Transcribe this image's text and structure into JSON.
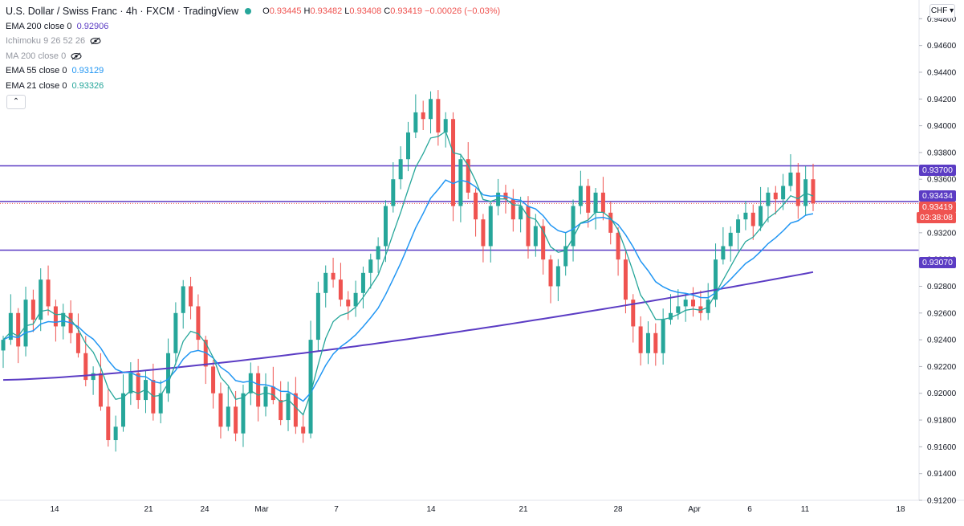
{
  "header": {
    "title": "U.S. Dollar / Swiss Franc · 4h · FXCM · TradingView",
    "ohlc": {
      "o_label": "O",
      "o": "0.93445",
      "h_label": "H",
      "h": "0.93482",
      "l_label": "L",
      "l": "0.93408",
      "c_label": "C",
      "c": "0.93419",
      "change": "−0.00026 (−0.03%)"
    },
    "currency": "CHF"
  },
  "indicators": [
    {
      "label": "EMA 200 close 0",
      "value": "0.92906",
      "color": "#5b3cc4",
      "hidden": false
    },
    {
      "label": "Ichimoku 9 26 52 26",
      "value": "",
      "color": "#9598a1",
      "hidden": true
    },
    {
      "label": "MA 200 close 0",
      "value": "",
      "color": "#9598a1",
      "hidden": true
    },
    {
      "label": "EMA 55 close 0",
      "value": "0.93129",
      "color": "#2196f3",
      "hidden": false
    },
    {
      "label": "EMA 21 close 0",
      "value": "0.93326",
      "color": "#26a69a",
      "hidden": false
    }
  ],
  "price_tags": {
    "level_high": "0.93700",
    "level_mid": "0.93434",
    "last": "0.93419",
    "countdown": "03:38:08",
    "level_low": "0.93070"
  },
  "colors": {
    "up": "#26a69a",
    "down": "#ef5350",
    "level": "#5b3cc4",
    "ema200": "#5b3cc4",
    "ema55": "#2196f3",
    "ema21": "#26a69a"
  },
  "chart_data": {
    "type": "candlestick",
    "y_ticks": [
      "0.94800",
      "0.94600",
      "0.94400",
      "0.94200",
      "0.94000",
      "0.93800",
      "0.93600",
      "0.93400",
      "0.93200",
      "0.93000",
      "0.92800",
      "0.92600",
      "0.92400",
      "0.92200",
      "0.92000",
      "0.91800",
      "0.91600",
      "0.91400",
      "0.91200"
    ],
    "ylim": [
      0.912,
      0.9485
    ],
    "x_ticks": [
      "14",
      "21",
      "24",
      "Mar",
      "7",
      "14",
      "21",
      "28",
      "Apr",
      "6",
      "11",
      "18"
    ],
    "horizontal_levels": [
      0.937,
      0.93434,
      0.9307
    ],
    "close_path": [
      0.924,
      0.926,
      0.9235,
      0.927,
      0.9255,
      0.9285,
      0.9265,
      0.925,
      0.926,
      0.9245,
      0.923,
      0.921,
      0.9215,
      0.919,
      0.9165,
      0.9175,
      0.92,
      0.9215,
      0.9195,
      0.921,
      0.9185,
      0.92,
      0.923,
      0.926,
      0.928,
      0.9265,
      0.924,
      0.922,
      0.92,
      0.9175,
      0.919,
      0.917,
      0.92,
      0.9215,
      0.919,
      0.9205,
      0.9195,
      0.918,
      0.92,
      0.9175,
      0.917,
      0.924,
      0.9275,
      0.929,
      0.9285,
      0.927,
      0.9265,
      0.9275,
      0.929,
      0.93,
      0.931,
      0.934,
      0.936,
      0.9375,
      0.9395,
      0.941,
      0.9405,
      0.942,
      0.9395,
      0.9405,
      0.934,
      0.9375,
      0.935,
      0.933,
      0.931,
      0.934,
      0.935,
      0.9345,
      0.933,
      0.934,
      0.931,
      0.9325,
      0.93,
      0.928,
      0.9295,
      0.931,
      0.934,
      0.9355,
      0.9335,
      0.935,
      0.9335,
      0.932,
      0.93,
      0.927,
      0.925,
      0.923,
      0.9245,
      0.923,
      0.9255,
      0.926,
      0.9265,
      0.927,
      0.9265,
      0.926,
      0.927,
      0.93,
      0.931,
      0.932,
      0.933,
      0.9335,
      0.9325,
      0.934,
      0.935,
      0.9345,
      0.9355,
      0.9365,
      0.934,
      0.936,
      0.9342
    ],
    "ema200": {
      "from": 0.921,
      "to": 0.92906
    },
    "ema55_last": 0.93129,
    "ema21_last": 0.93326
  }
}
